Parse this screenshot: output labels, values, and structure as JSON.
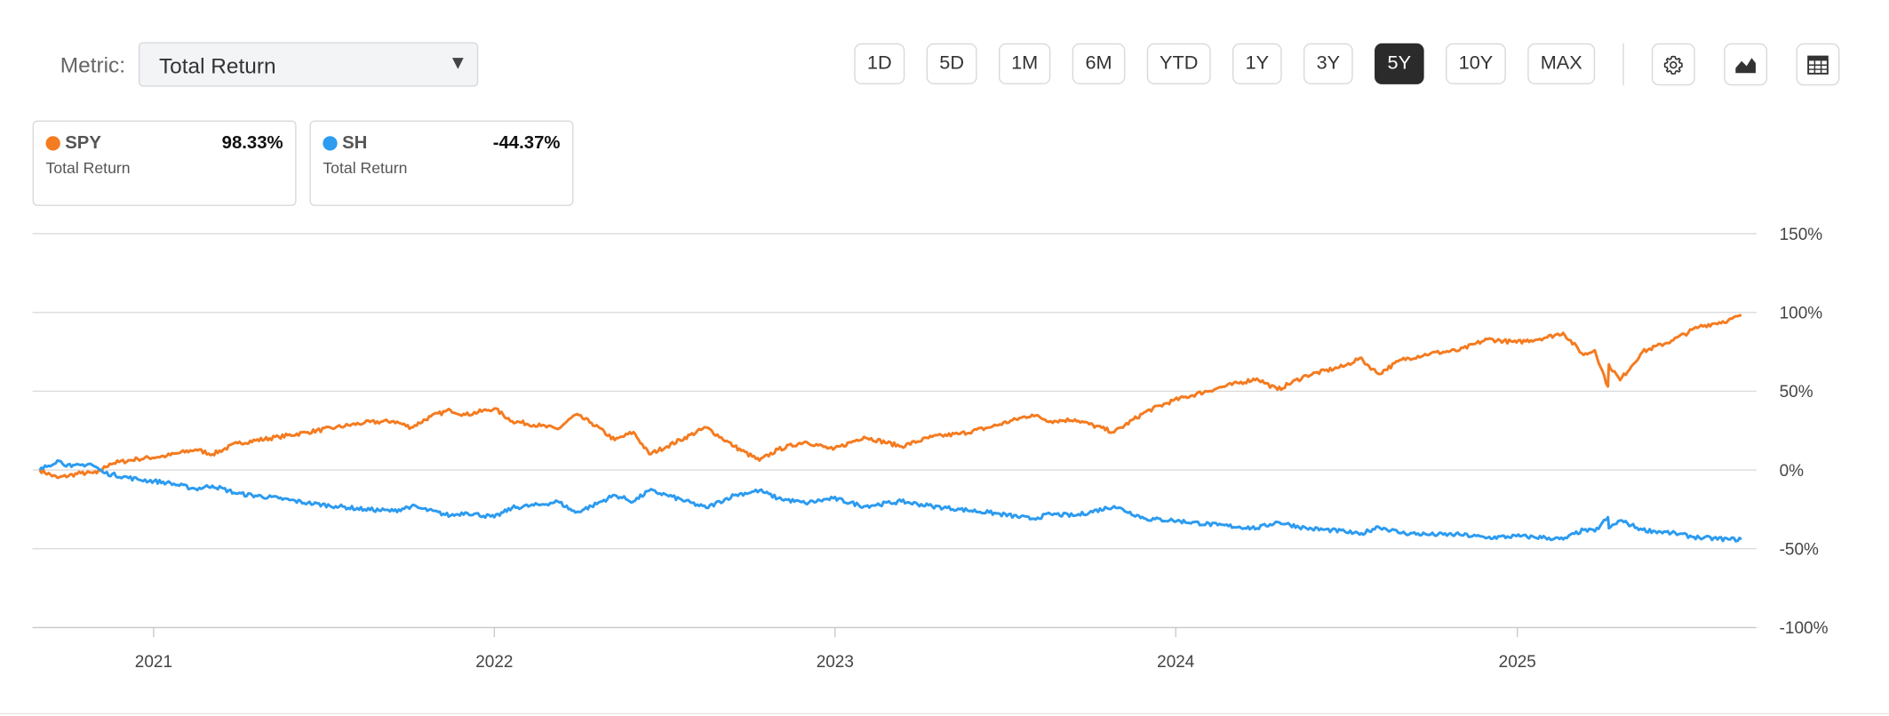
{
  "toolbar": {
    "metric_label": "Metric:",
    "metric_value": "Total Return",
    "ranges": [
      "1D",
      "5D",
      "1M",
      "6M",
      "YTD",
      "1Y",
      "3Y",
      "5Y",
      "10Y",
      "MAX"
    ],
    "active_range": "5Y",
    "icons": [
      "gear-icon",
      "area-chart-icon",
      "table-icon"
    ]
  },
  "legend": [
    {
      "ticker": "SPY",
      "value": "98.33%",
      "sublabel": "Total Return",
      "color": "#f47b20"
    },
    {
      "ticker": "SH",
      "value": "-44.37%",
      "sublabel": "Total Return",
      "color": "#2c9bf0"
    }
  ],
  "chart_data": {
    "type": "line",
    "title": "",
    "xlabel": "",
    "ylabel": "",
    "x_ticks": [
      "2021",
      "2022",
      "2023",
      "2024",
      "2025"
    ],
    "y_ticks": [
      "150%",
      "100%",
      "50%",
      "0%",
      "-50%",
      "-100%"
    ],
    "ylim": [
      -100,
      150
    ],
    "xlim": [
      "2020-09",
      "2025-09"
    ],
    "grid": true,
    "y_axis_side": "right",
    "series": [
      {
        "name": "SPY",
        "color": "#f47b20",
        "points": [
          [
            "2020-09-01",
            0
          ],
          [
            "2020-09-20",
            -5
          ],
          [
            "2020-10-15",
            -2
          ],
          [
            "2020-11-01",
            -2
          ],
          [
            "2020-11-15",
            4
          ],
          [
            "2020-12-15",
            7
          ],
          [
            "2021-01-15",
            9
          ],
          [
            "2021-02-15",
            13
          ],
          [
            "2021-03-05",
            10
          ],
          [
            "2021-04-01",
            17
          ],
          [
            "2021-05-15",
            21
          ],
          [
            "2021-06-15",
            24
          ],
          [
            "2021-07-15",
            27
          ],
          [
            "2021-08-15",
            30
          ],
          [
            "2021-09-15",
            31
          ],
          [
            "2021-10-04",
            27
          ],
          [
            "2021-10-25",
            34
          ],
          [
            "2021-11-15",
            38
          ],
          [
            "2021-12-01",
            35
          ],
          [
            "2022-01-01",
            39
          ],
          [
            "2022-01-20",
            31
          ],
          [
            "2022-02-20",
            28
          ],
          [
            "2022-03-10",
            26
          ],
          [
            "2022-03-29",
            35
          ],
          [
            "2022-04-15",
            30
          ],
          [
            "2022-05-10",
            19
          ],
          [
            "2022-05-30",
            24
          ],
          [
            "2022-06-16",
            10
          ],
          [
            "2022-07-05",
            15
          ],
          [
            "2022-08-16",
            27
          ],
          [
            "2022-09-15",
            15
          ],
          [
            "2022-10-12",
            6
          ],
          [
            "2022-11-01",
            13
          ],
          [
            "2022-11-30",
            18
          ],
          [
            "2022-12-30",
            13
          ],
          [
            "2023-02-01",
            21
          ],
          [
            "2023-03-13",
            15
          ],
          [
            "2023-04-15",
            21
          ],
          [
            "2023-05-15",
            23
          ],
          [
            "2023-06-15",
            27
          ],
          [
            "2023-07-31",
            35
          ],
          [
            "2023-08-20",
            31
          ],
          [
            "2023-09-15",
            32
          ],
          [
            "2023-10-27",
            24
          ],
          [
            "2023-11-30",
            37
          ],
          [
            "2023-12-29",
            44
          ],
          [
            "2024-02-15",
            52
          ],
          [
            "2024-03-28",
            58
          ],
          [
            "2024-04-19",
            51
          ],
          [
            "2024-05-20",
            60
          ],
          [
            "2024-06-30",
            66
          ],
          [
            "2024-07-16",
            71
          ],
          [
            "2024-08-05",
            61
          ],
          [
            "2024-08-30",
            70
          ],
          [
            "2024-09-30",
            74
          ],
          [
            "2024-10-31",
            76
          ],
          [
            "2024-11-30",
            83
          ],
          [
            "2024-12-31",
            81
          ],
          [
            "2025-01-31",
            84
          ],
          [
            "2025-02-19",
            87
          ],
          [
            "2025-03-13",
            73
          ],
          [
            "2025-03-25",
            76
          ],
          [
            "2025-04-08",
            53
          ],
          [
            "2025-04-09",
            67
          ],
          [
            "2025-04-21",
            57
          ],
          [
            "2025-05-15",
            75
          ],
          [
            "2025-06-15",
            82
          ],
          [
            "2025-07-15",
            91
          ],
          [
            "2025-08-15",
            95
          ],
          [
            "2025-08-29",
            98
          ]
        ]
      },
      {
        "name": "SH",
        "color": "#2c9bf0",
        "points": [
          [
            "2020-09-01",
            0
          ],
          [
            "2020-09-20",
            6
          ],
          [
            "2020-10-05",
            2
          ],
          [
            "2020-10-25",
            4
          ],
          [
            "2020-11-10",
            -2
          ],
          [
            "2020-12-15",
            -6
          ],
          [
            "2021-01-15",
            -8
          ],
          [
            "2021-02-15",
            -12
          ],
          [
            "2021-03-05",
            -10
          ],
          [
            "2021-04-01",
            -15
          ],
          [
            "2021-05-15",
            -18
          ],
          [
            "2021-06-15",
            -21
          ],
          [
            "2021-07-15",
            -23
          ],
          [
            "2021-08-15",
            -25
          ],
          [
            "2021-09-15",
            -26
          ],
          [
            "2021-10-04",
            -23
          ],
          [
            "2021-11-15",
            -29
          ],
          [
            "2021-12-01",
            -27
          ],
          [
            "2022-01-01",
            -30
          ],
          [
            "2022-01-20",
            -24
          ],
          [
            "2022-02-20",
            -22
          ],
          [
            "2022-03-10",
            -20
          ],
          [
            "2022-03-29",
            -27
          ],
          [
            "2022-04-15",
            -23
          ],
          [
            "2022-05-10",
            -16
          ],
          [
            "2022-05-30",
            -20
          ],
          [
            "2022-06-16",
            -13
          ],
          [
            "2022-07-05",
            -16
          ],
          [
            "2022-08-16",
            -24
          ],
          [
            "2022-09-15",
            -16
          ],
          [
            "2022-10-12",
            -13
          ],
          [
            "2022-11-01",
            -18
          ],
          [
            "2022-11-30",
            -21
          ],
          [
            "2022-12-30",
            -18
          ],
          [
            "2023-02-01",
            -23
          ],
          [
            "2023-03-13",
            -20
          ],
          [
            "2023-04-15",
            -23
          ],
          [
            "2023-05-15",
            -25
          ],
          [
            "2023-06-15",
            -27
          ],
          [
            "2023-07-31",
            -31
          ],
          [
            "2023-08-20",
            -28
          ],
          [
            "2023-09-15",
            -29
          ],
          [
            "2023-10-27",
            -23
          ],
          [
            "2023-11-30",
            -31
          ],
          [
            "2023-12-29",
            -32
          ],
          [
            "2024-02-15",
            -35
          ],
          [
            "2024-03-28",
            -37
          ],
          [
            "2024-04-19",
            -33
          ],
          [
            "2024-05-20",
            -37
          ],
          [
            "2024-06-30",
            -39
          ],
          [
            "2024-07-16",
            -41
          ],
          [
            "2024-08-05",
            -36
          ],
          [
            "2024-08-30",
            -40
          ],
          [
            "2024-09-30",
            -41
          ],
          [
            "2024-10-31",
            -41
          ],
          [
            "2024-11-30",
            -43
          ],
          [
            "2024-12-31",
            -42
          ],
          [
            "2025-01-31",
            -43
          ],
          [
            "2025-02-19",
            -44
          ],
          [
            "2025-03-13",
            -38
          ],
          [
            "2025-03-25",
            -39
          ],
          [
            "2025-04-08",
            -30
          ],
          [
            "2025-04-09",
            -37
          ],
          [
            "2025-04-21",
            -32
          ],
          [
            "2025-05-15",
            -38
          ],
          [
            "2025-06-15",
            -40
          ],
          [
            "2025-07-15",
            -43
          ],
          [
            "2025-08-15",
            -44
          ],
          [
            "2025-08-29",
            -44
          ]
        ]
      }
    ]
  }
}
